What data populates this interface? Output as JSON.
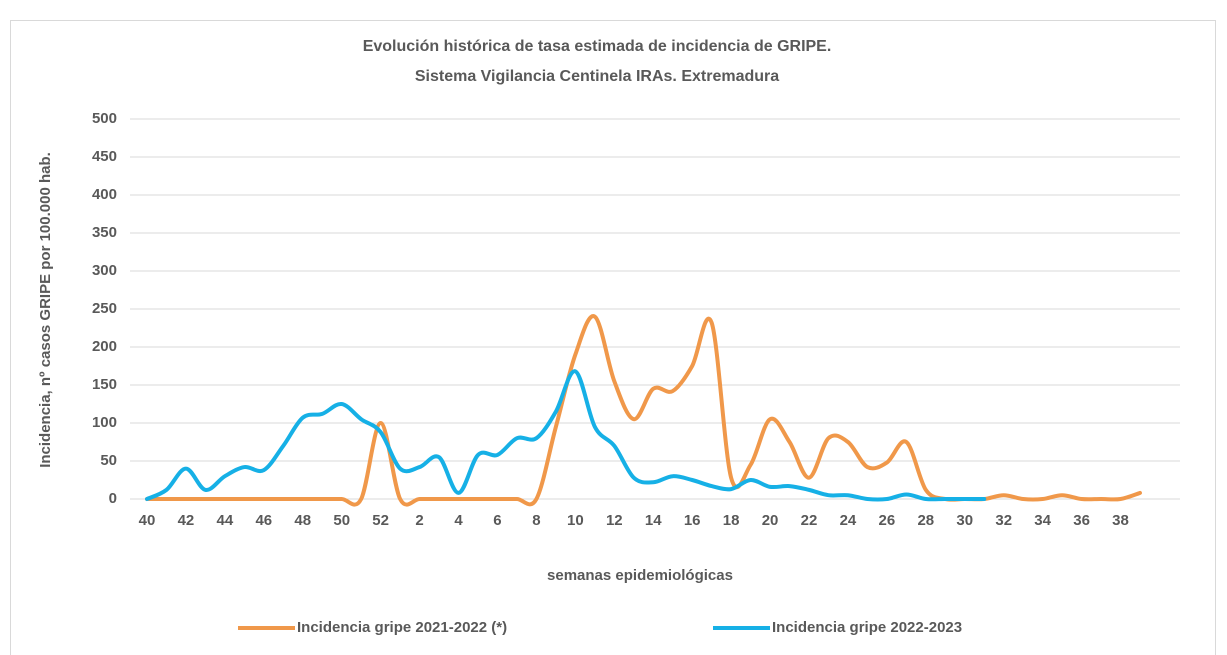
{
  "chart_data": {
    "type": "line",
    "title": "Evolución histórica de tasa estimada de  incidencia de GRIPE.",
    "subtitle": "Sistema Vigilancia Centinela IRAs. Extremadura",
    "y_label": "Incidencia, nº casos GRIPE  por 100.000 hab.",
    "x_label": "semanas epidemiológicas",
    "categories": [
      "40",
      null,
      "42",
      null,
      "44",
      null,
      "46",
      null,
      "48",
      null,
      "50",
      null,
      "52",
      null,
      "2",
      null,
      "4",
      null,
      "6",
      null,
      "8",
      null,
      "10",
      null,
      "12",
      null,
      "14",
      null,
      "16",
      null,
      "18",
      null,
      "20",
      null,
      "22",
      null,
      "24",
      null,
      "26",
      null,
      "28",
      null,
      "30",
      null,
      "32",
      null,
      "34",
      null,
      "36",
      null,
      "38",
      null
    ],
    "series": [
      {
        "name": "Incidencia gripe 2021-2022 (*)",
        "color": "#f0984a",
        "values": [
          0,
          0,
          0,
          0,
          0,
          0,
          0,
          0,
          0,
          0,
          0,
          0,
          100,
          0,
          0,
          0,
          0,
          0,
          0,
          0,
          0,
          95,
          190,
          240,
          155,
          105,
          145,
          142,
          175,
          232,
          28,
          45,
          105,
          75,
          28,
          80,
          75,
          42,
          48,
          75,
          12,
          0,
          0,
          0,
          5,
          0,
          0,
          5,
          0,
          0,
          0,
          8
        ]
      },
      {
        "name": "Incidencia gripe 2022-2023",
        "color": "#16b0e6",
        "values": [
          0,
          12,
          40,
          12,
          30,
          42,
          38,
          70,
          107,
          112,
          125,
          105,
          88,
          40,
          42,
          55,
          8,
          58,
          58,
          80,
          80,
          115,
          168,
          95,
          70,
          28,
          22,
          30,
          25,
          17,
          13,
          25,
          16,
          17,
          12,
          5,
          5,
          0,
          0,
          6,
          0,
          0,
          0,
          0,
          null,
          null,
          null,
          null,
          null,
          null,
          null,
          null
        ]
      }
    ],
    "ylim": [
      0,
      500
    ],
    "yticks": [
      0,
      50,
      100,
      150,
      200,
      250,
      300,
      350,
      400,
      450,
      500
    ],
    "grid": true
  }
}
